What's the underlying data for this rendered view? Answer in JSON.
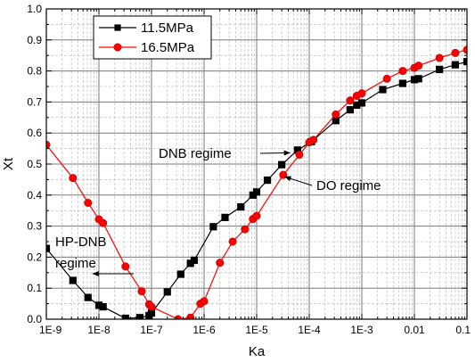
{
  "chart_data": {
    "type": "scatter",
    "xlabel": "Ka",
    "ylabel": "Xt",
    "xscale": "log",
    "xlim": [
      1e-09,
      0.1
    ],
    "ylim": [
      0,
      1.0
    ],
    "x_tick_values": [
      1e-09,
      1e-08,
      1e-07,
      1e-06,
      1e-05,
      0.0001,
      0.001,
      0.01,
      0.1
    ],
    "x_tick_labels": [
      "1E-9",
      "1E-8",
      "1E-7",
      "1E-6",
      "1E-5",
      "1E-4",
      "1E-3",
      "0.01",
      "0.1"
    ],
    "y_tick_values": [
      0,
      0.1,
      0.2,
      0.3,
      0.4,
      0.5,
      0.6,
      0.7,
      0.8,
      0.9,
      1.0
    ],
    "y_tick_labels": [
      "0.0",
      "0.1",
      "0.2",
      "0.3",
      "0.4",
      "0.5",
      "0.6",
      "0.7",
      "0.8",
      "0.9",
      "1.0"
    ],
    "grid": true,
    "legend_position": "top-left",
    "series": [
      {
        "name": "11.5MPa",
        "color": "#000000",
        "marker": "square",
        "points": [
          [
            1e-09,
            0.228
          ],
          [
            3.2e-09,
            0.125
          ],
          [
            6.2e-09,
            0.07
          ],
          [
            1e-08,
            0.045
          ],
          [
            1.2e-08,
            0.04
          ],
          [
            3.2e-08,
            0.003
          ],
          [
            6e-08,
            0.005
          ],
          [
            9e-08,
            0.012
          ],
          [
            1e-07,
            0.02
          ],
          [
            2e-07,
            0.088
          ],
          [
            3.6e-07,
            0.145
          ],
          [
            5.5e-07,
            0.18
          ],
          [
            6.5e-07,
            0.19
          ],
          [
            1.5e-06,
            0.298
          ],
          [
            2.5e-06,
            0.328
          ],
          [
            5e-06,
            0.362
          ],
          [
            8.5e-06,
            0.4
          ],
          [
            1e-05,
            0.41
          ],
          [
            1.6e-05,
            0.448
          ],
          [
            3e-05,
            0.498
          ],
          [
            6e-05,
            0.545
          ],
          [
            0.00011,
            0.572
          ],
          [
            0.00032,
            0.64
          ],
          [
            0.0006,
            0.675
          ],
          [
            0.0008,
            0.69
          ],
          [
            0.001,
            0.697
          ],
          [
            0.0025,
            0.74
          ],
          [
            0.006,
            0.76
          ],
          [
            0.01,
            0.772
          ],
          [
            0.012,
            0.775
          ],
          [
            0.03,
            0.805
          ],
          [
            0.06,
            0.82
          ],
          [
            0.1,
            0.83
          ]
        ]
      },
      {
        "name": "16.5MPa",
        "color": "#ff0000",
        "marker": "circle",
        "points": [
          [
            1e-09,
            0.562
          ],
          [
            3.2e-09,
            0.455
          ],
          [
            6.2e-09,
            0.375
          ],
          [
            1e-08,
            0.322
          ],
          [
            1.2e-08,
            0.31
          ],
          [
            3.2e-08,
            0.17
          ],
          [
            6.5e-08,
            0.09
          ],
          [
            9e-08,
            0.048
          ],
          [
            1e-07,
            0.04
          ],
          [
            3.2e-07,
            0.0
          ],
          [
            5.5e-07,
            0.005
          ],
          [
            8.5e-07,
            0.05
          ],
          [
            1e-06,
            0.058
          ],
          [
            2e-06,
            0.182
          ],
          [
            3.5e-06,
            0.25
          ],
          [
            6e-06,
            0.29
          ],
          [
            8.5e-06,
            0.323
          ],
          [
            1e-05,
            0.333
          ],
          [
            3.2e-05,
            0.465
          ],
          [
            6.5e-05,
            0.53
          ],
          [
            0.0001,
            0.57
          ],
          [
            0.00012,
            0.578
          ],
          [
            0.00032,
            0.66
          ],
          [
            0.0006,
            0.705
          ],
          [
            0.0008,
            0.72
          ],
          [
            0.001,
            0.728
          ],
          [
            0.003,
            0.775
          ],
          [
            0.006,
            0.8
          ],
          [
            0.01,
            0.81
          ],
          [
            0.012,
            0.817
          ],
          [
            0.03,
            0.842
          ],
          [
            0.06,
            0.858
          ],
          [
            0.1,
            0.868
          ]
        ]
      }
    ],
    "annotations": [
      {
        "text": "DNB regime",
        "arrow_to": [
          5.5e-05,
          0.545
        ]
      },
      {
        "text": "DO regime",
        "arrow_to": [
          2.8e-05,
          0.465
        ]
      },
      {
        "lines": [
          "HP-DNB",
          "regime"
        ],
        "arrow_to": [
          1.3e-08,
          0.165
        ]
      }
    ]
  }
}
